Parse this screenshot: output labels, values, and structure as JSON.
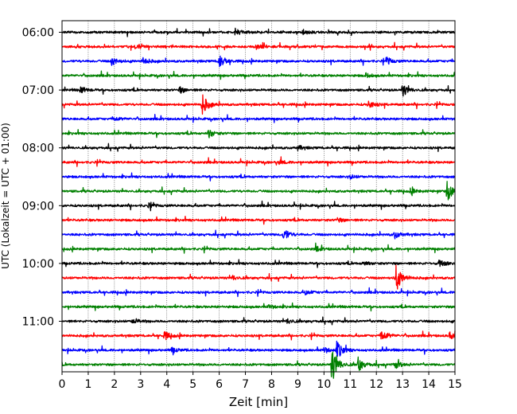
{
  "chart_data": {
    "type": "line",
    "title": "",
    "xlabel": "Zeit  [min]",
    "ylabel": "UTC (Lokalzeit = UTC + 01:00)",
    "xlim": [
      0,
      15
    ],
    "x_ticks": [
      0,
      1,
      2,
      3,
      4,
      5,
      6,
      7,
      8,
      9,
      10,
      11,
      12,
      13,
      14,
      15
    ],
    "x_tick_labels": [
      "0",
      "1",
      "2",
      "3",
      "4",
      "5",
      "6",
      "7",
      "8",
      "9",
      "10",
      "11",
      "12",
      "13",
      "14",
      "15"
    ],
    "y_tick_labels": [
      "06:00",
      "07:00",
      "08:00",
      "09:00",
      "10:00",
      "11:00"
    ],
    "grid": "vertical dotted lines at each minute",
    "legend": "none",
    "row_duration_min": 15,
    "color_cycle": [
      "#000000",
      "#ff0000",
      "#0000ff",
      "#008000"
    ],
    "series": [
      {
        "row_start": "06:00",
        "color": "#000000",
        "events": [
          [
            6.6,
            0.45
          ],
          [
            9.2,
            0.3
          ]
        ]
      },
      {
        "row_start": "06:15",
        "color": "#ff0000",
        "events": [
          [
            2.8,
            0.35
          ],
          [
            7.4,
            0.3
          ]
        ]
      },
      {
        "row_start": "06:30",
        "color": "#0000ff",
        "events": [
          [
            6.0,
            1.0
          ],
          [
            1.9,
            0.55
          ],
          [
            3.1,
            0.5
          ],
          [
            12.4,
            0.45
          ]
        ]
      },
      {
        "row_start": "06:45",
        "color": "#008000",
        "events": [
          [
            11.6,
            0.3
          ]
        ]
      },
      {
        "row_start": "07:00",
        "color": "#000000",
        "events": [
          [
            13.0,
            0.85
          ],
          [
            0.7,
            0.45
          ],
          [
            4.5,
            0.4
          ]
        ]
      },
      {
        "row_start": "07:15",
        "color": "#ff0000",
        "events": [
          [
            5.35,
            1.4
          ],
          [
            11.7,
            0.55
          ]
        ]
      },
      {
        "row_start": "07:30",
        "color": "#0000ff",
        "events": [
          [
            2.0,
            0.3
          ]
        ]
      },
      {
        "row_start": "07:45",
        "color": "#008000",
        "events": [
          [
            5.6,
            0.55
          ]
        ]
      },
      {
        "row_start": "08:00",
        "color": "#000000",
        "events": [
          [
            9.0,
            0.3
          ]
        ]
      },
      {
        "row_start": "08:15",
        "color": "#ff0000",
        "events": [
          [
            8.3,
            0.25
          ]
        ]
      },
      {
        "row_start": "08:30",
        "color": "#0000ff",
        "events": [
          [
            11.0,
            0.25
          ]
        ]
      },
      {
        "row_start": "08:45",
        "color": "#008000",
        "events": [
          [
            14.7,
            1.4
          ],
          [
            13.3,
            0.35
          ]
        ]
      },
      {
        "row_start": "09:00",
        "color": "#000000",
        "events": [
          [
            3.3,
            0.25
          ]
        ]
      },
      {
        "row_start": "09:15",
        "color": "#ff0000",
        "events": [
          [
            10.5,
            0.3
          ]
        ]
      },
      {
        "row_start": "09:30",
        "color": "#0000ff",
        "events": [
          [
            8.45,
            0.85
          ],
          [
            12.7,
            0.5
          ]
        ]
      },
      {
        "row_start": "09:45",
        "color": "#008000",
        "events": [
          [
            9.7,
            0.3
          ]
        ]
      },
      {
        "row_start": "10:00",
        "color": "#000000",
        "events": [
          [
            14.4,
            0.55
          ],
          [
            11.5,
            0.3
          ]
        ]
      },
      {
        "row_start": "10:15",
        "color": "#ff0000",
        "events": [
          [
            12.75,
            1.9
          ],
          [
            6.5,
            0.3
          ]
        ]
      },
      {
        "row_start": "10:30",
        "color": "#0000ff",
        "events": [
          [
            9.3,
            0.3
          ]
        ]
      },
      {
        "row_start": "10:45",
        "color": "#008000",
        "events": [
          [
            7.9,
            0.25
          ]
        ]
      },
      {
        "row_start": "11:00",
        "color": "#000000",
        "events": [
          [
            2.7,
            0.4
          ],
          [
            8.6,
            0.35
          ]
        ]
      },
      {
        "row_start": "11:15",
        "color": "#ff0000",
        "events": [
          [
            3.9,
            0.6
          ],
          [
            12.2,
            0.85
          ],
          [
            14.8,
            0.5
          ]
        ]
      },
      {
        "row_start": "11:30",
        "color": "#0000ff",
        "events": [
          [
            10.5,
            1.2
          ],
          [
            4.2,
            0.35
          ],
          [
            10.0,
            0.4
          ]
        ]
      },
      {
        "row_start": "11:45",
        "color": "#008000",
        "events": [
          [
            10.3,
            2.6
          ],
          [
            11.3,
            1.0
          ],
          [
            12.7,
            0.6
          ]
        ]
      }
    ]
  }
}
